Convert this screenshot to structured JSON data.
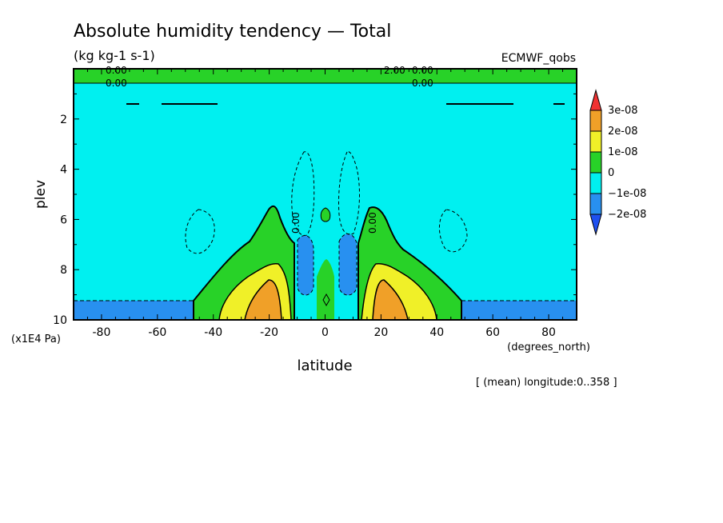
{
  "chart_data": {
    "type": "heatmap",
    "title": "Absolute humidity tendency — Total",
    "units": "(kg kg-1 s-1)",
    "dataset": "ECMWF_qobs",
    "xlabel": "latitude",
    "x_units": "(degrees_north)",
    "ylabel": "plev",
    "y_units": "(x1E4 Pa)",
    "footnote": "[ (mean) longitude:0..358 ]",
    "xlim": [
      -90,
      90
    ],
    "ylim": [
      10,
      0
    ],
    "x_ticks": [
      -80,
      -60,
      -40,
      -20,
      0,
      20,
      40,
      60,
      80
    ],
    "y_ticks": [
      2,
      4,
      6,
      8,
      10
    ],
    "legend": {
      "labels": [
        "3e-08",
        "2e-08",
        "1e-08",
        "0",
        "−1e-08",
        "−2e-08"
      ],
      "colors": [
        "#f03232",
        "#f0a028",
        "#f0f028",
        "#28d228",
        "#00f0f0",
        "#2890f0",
        "#1e50f0"
      ]
    },
    "contour_labels": [
      "0.00",
      "0.00",
      "0.00",
      "0.00",
      "0.00",
      "0.00",
      "2.00"
    ],
    "regions": [
      {
        "name": "background",
        "level": "0 to -1e-08",
        "color": "#00f0f0"
      },
      {
        "name": "top band",
        "plev": [
          0,
          0.6
        ],
        "level": "0 to 1e-08",
        "color": "#28d228"
      },
      {
        "name": "lower left negative",
        "lat": [
          -90,
          -47
        ],
        "plev": [
          9.2,
          10
        ],
        "level": "-1e-08 to -2e-08",
        "color": "#2890f0"
      },
      {
        "name": "lower right negative",
        "lat": [
          48,
          90
        ],
        "plev": [
          9.2,
          10
        ],
        "level": "-1e-08 to -2e-08",
        "color": "#2890f0"
      },
      {
        "name": "subtropical maxima",
        "lat": [
          -45,
          48
        ],
        "plev": [
          5.5,
          10
        ],
        "peak": "2e-08 to 3e-08",
        "peak_lat": [
          -20,
          20
        ],
        "peak_plev": 9.4
      },
      {
        "name": "equatorial minima",
        "lat": [
          -9,
          9
        ],
        "plev": [
          6.5,
          9
        ],
        "level": "-1e-08 to -2e-08",
        "color": "#2890f0"
      }
    ]
  }
}
